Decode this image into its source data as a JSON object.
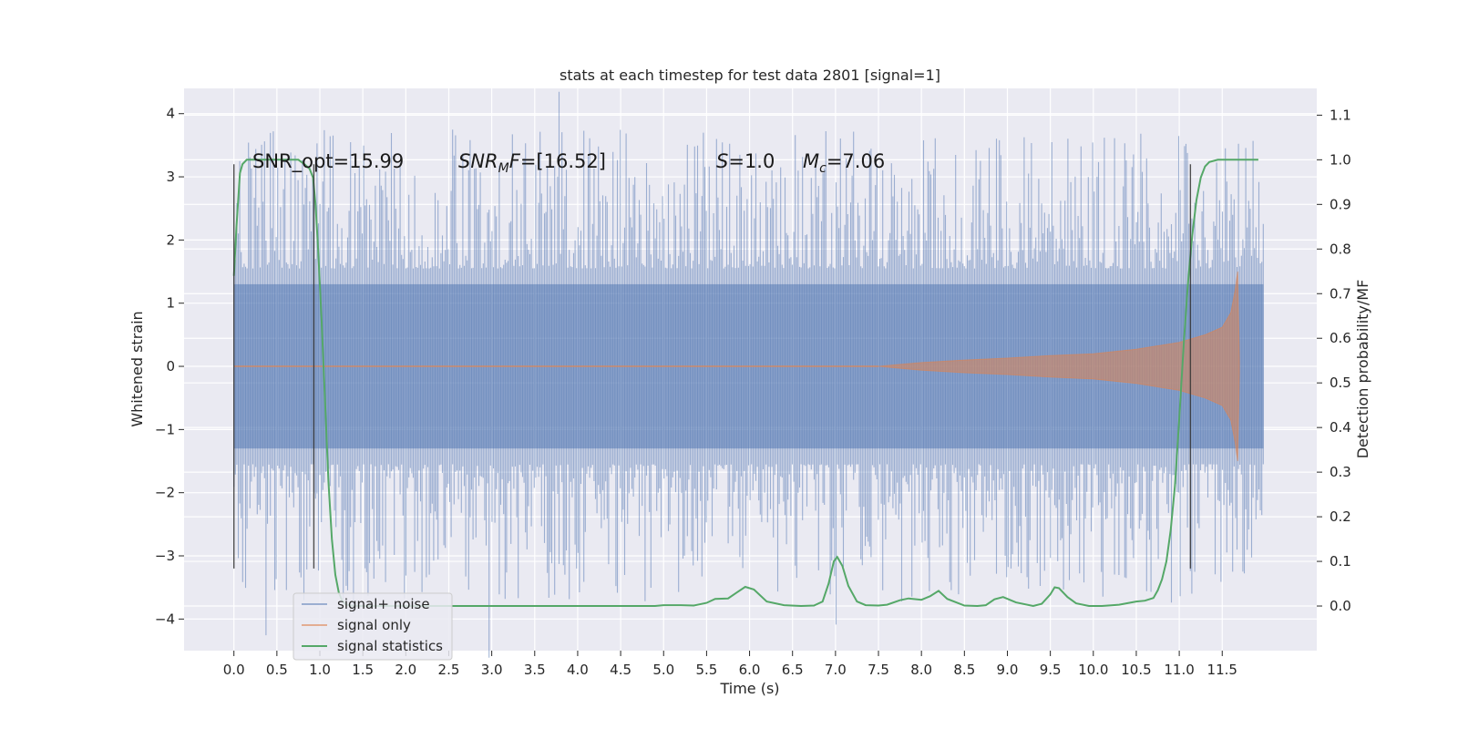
{
  "chart_data": {
    "type": "line",
    "title": "stats at each timestep for test data 2801 [signal=1]",
    "xlabel": "Time (s)",
    "ylabel": "Whitened strain",
    "y2label": "Detection probability/MF",
    "xlim": [
      -0.58,
      12.6
    ],
    "ylim": [
      -4.5,
      4.4
    ],
    "y2lim": [
      -0.1,
      1.16
    ],
    "xticks": [
      0.0,
      0.5,
      1.0,
      1.5,
      2.0,
      2.5,
      3.0,
      3.5,
      4.0,
      4.5,
      5.0,
      5.5,
      6.0,
      6.5,
      7.0,
      7.5,
      8.0,
      8.5,
      9.0,
      9.5,
      10.0,
      10.5,
      11.0,
      11.5
    ],
    "xtick_labels": [
      "0.0",
      "0.5",
      "1.0",
      "1.5",
      "2.0",
      "2.5",
      "3.0",
      "3.5",
      "4.0",
      "4.5",
      "5.0",
      "5.5",
      "6.0",
      "6.5",
      "7.0",
      "7.5",
      "8.0",
      "8.5",
      "9.0",
      "9.5",
      "10.0",
      "10.5",
      "11.0",
      "11.5"
    ],
    "yticks": [
      4,
      3,
      2,
      1,
      0,
      -1,
      -2,
      -3,
      -4
    ],
    "ytick_labels": [
      "4",
      "3",
      "2",
      "1",
      "0",
      "−1",
      "−2",
      "−3",
      "−4"
    ],
    "y2ticks": [
      1.1,
      1.0,
      0.9,
      0.8,
      0.7,
      0.6,
      0.5,
      0.4,
      0.3,
      0.2,
      0.1,
      0.0
    ],
    "y2tick_labels": [
      "1.1",
      "1.0",
      "0.9",
      "0.8",
      "0.7",
      "0.6",
      "0.5",
      "0.4",
      "0.3",
      "0.2",
      "0.1",
      "0.0"
    ],
    "grid": true,
    "legend_position": "lower-left",
    "series": [
      {
        "name": "signal+ noise",
        "axis": "left",
        "color": "#4c72b0",
        "noise_band": {
          "time_range": [
            0.0,
            11.98
          ],
          "core_amplitude": 1.3,
          "peak_amplitude": 4.1
        }
      },
      {
        "name": "signal only",
        "axis": "left",
        "color": "#dd8452",
        "envelope": {
          "t": [
            7.5,
            8.0,
            8.5,
            9.0,
            9.5,
            10.0,
            10.5,
            11.0,
            11.3,
            11.5,
            11.6,
            11.65,
            11.68,
            11.7
          ],
          "amp": [
            0.0,
            0.06,
            0.1,
            0.13,
            0.17,
            0.2,
            0.27,
            0.38,
            0.5,
            0.62,
            0.85,
            1.2,
            1.5,
            0.1
          ]
        }
      },
      {
        "name": "signal statistics",
        "axis": "right",
        "color": "#55a868",
        "x": [
          0.0,
          0.03,
          0.07,
          0.1,
          0.15,
          0.2,
          0.25,
          0.35,
          0.5,
          0.65,
          0.75,
          0.82,
          0.88,
          0.92,
          0.95,
          0.98,
          1.02,
          1.06,
          1.1,
          1.14,
          1.18,
          1.22,
          1.26,
          1.3,
          1.35,
          1.45,
          1.6,
          2.0,
          3.0,
          4.0,
          4.5,
          4.9,
          5.0,
          5.2,
          5.35,
          5.5,
          5.6,
          5.75,
          5.85,
          5.95,
          6.05,
          6.2,
          6.4,
          6.6,
          6.75,
          6.85,
          6.92,
          6.98,
          7.02,
          7.08,
          7.15,
          7.25,
          7.35,
          7.5,
          7.6,
          7.75,
          7.85,
          8.0,
          8.1,
          8.2,
          8.3,
          8.5,
          8.65,
          8.75,
          8.85,
          8.95,
          9.1,
          9.3,
          9.4,
          9.5,
          9.55,
          9.6,
          9.7,
          9.8,
          9.95,
          10.1,
          10.3,
          10.5,
          10.6,
          10.7,
          10.75,
          10.8,
          10.85,
          10.9,
          10.95,
          11.0,
          11.05,
          11.1,
          11.15,
          11.2,
          11.25,
          11.3,
          11.35,
          11.45,
          11.6,
          11.8,
          11.92
        ],
        "y": [
          0.74,
          0.85,
          0.97,
          0.99,
          1.0,
          1.0,
          1.0,
          1.0,
          1.0,
          1.0,
          1.0,
          0.99,
          0.98,
          0.96,
          0.9,
          0.8,
          0.64,
          0.46,
          0.28,
          0.15,
          0.07,
          0.03,
          0.012,
          0.004,
          0.001,
          0.0,
          0.0,
          0.0,
          0.0,
          0.0,
          0.0,
          0.0,
          0.002,
          0.002,
          0.001,
          0.007,
          0.016,
          0.017,
          0.03,
          0.043,
          0.037,
          0.01,
          0.002,
          0.0,
          0.001,
          0.01,
          0.05,
          0.1,
          0.11,
          0.09,
          0.045,
          0.01,
          0.002,
          0.001,
          0.003,
          0.013,
          0.017,
          0.014,
          0.022,
          0.034,
          0.016,
          0.001,
          0.0,
          0.002,
          0.015,
          0.02,
          0.008,
          0.0,
          0.005,
          0.026,
          0.042,
          0.04,
          0.02,
          0.006,
          0.0,
          0.0,
          0.003,
          0.01,
          0.012,
          0.018,
          0.035,
          0.06,
          0.1,
          0.17,
          0.27,
          0.42,
          0.58,
          0.72,
          0.83,
          0.91,
          0.96,
          0.985,
          0.995,
          1.0,
          1.0,
          1.0,
          1.0
        ]
      }
    ],
    "vlines": [
      0.0,
      0.93,
      11.13
    ],
    "annotations": {
      "snr_opt": "SNR_opt=15.99",
      "snr_mf": "=[16.52]",
      "s_value": "=1.0",
      "mc_value": "=7.06",
      "snr_mf_symbol_main": "SNR",
      "snr_mf_symbol_sub": "M",
      "snr_mf_symbol_tail": "F",
      "s_symbol": "S",
      "mc_symbol_main": "M",
      "mc_symbol_sub": "c"
    }
  }
}
